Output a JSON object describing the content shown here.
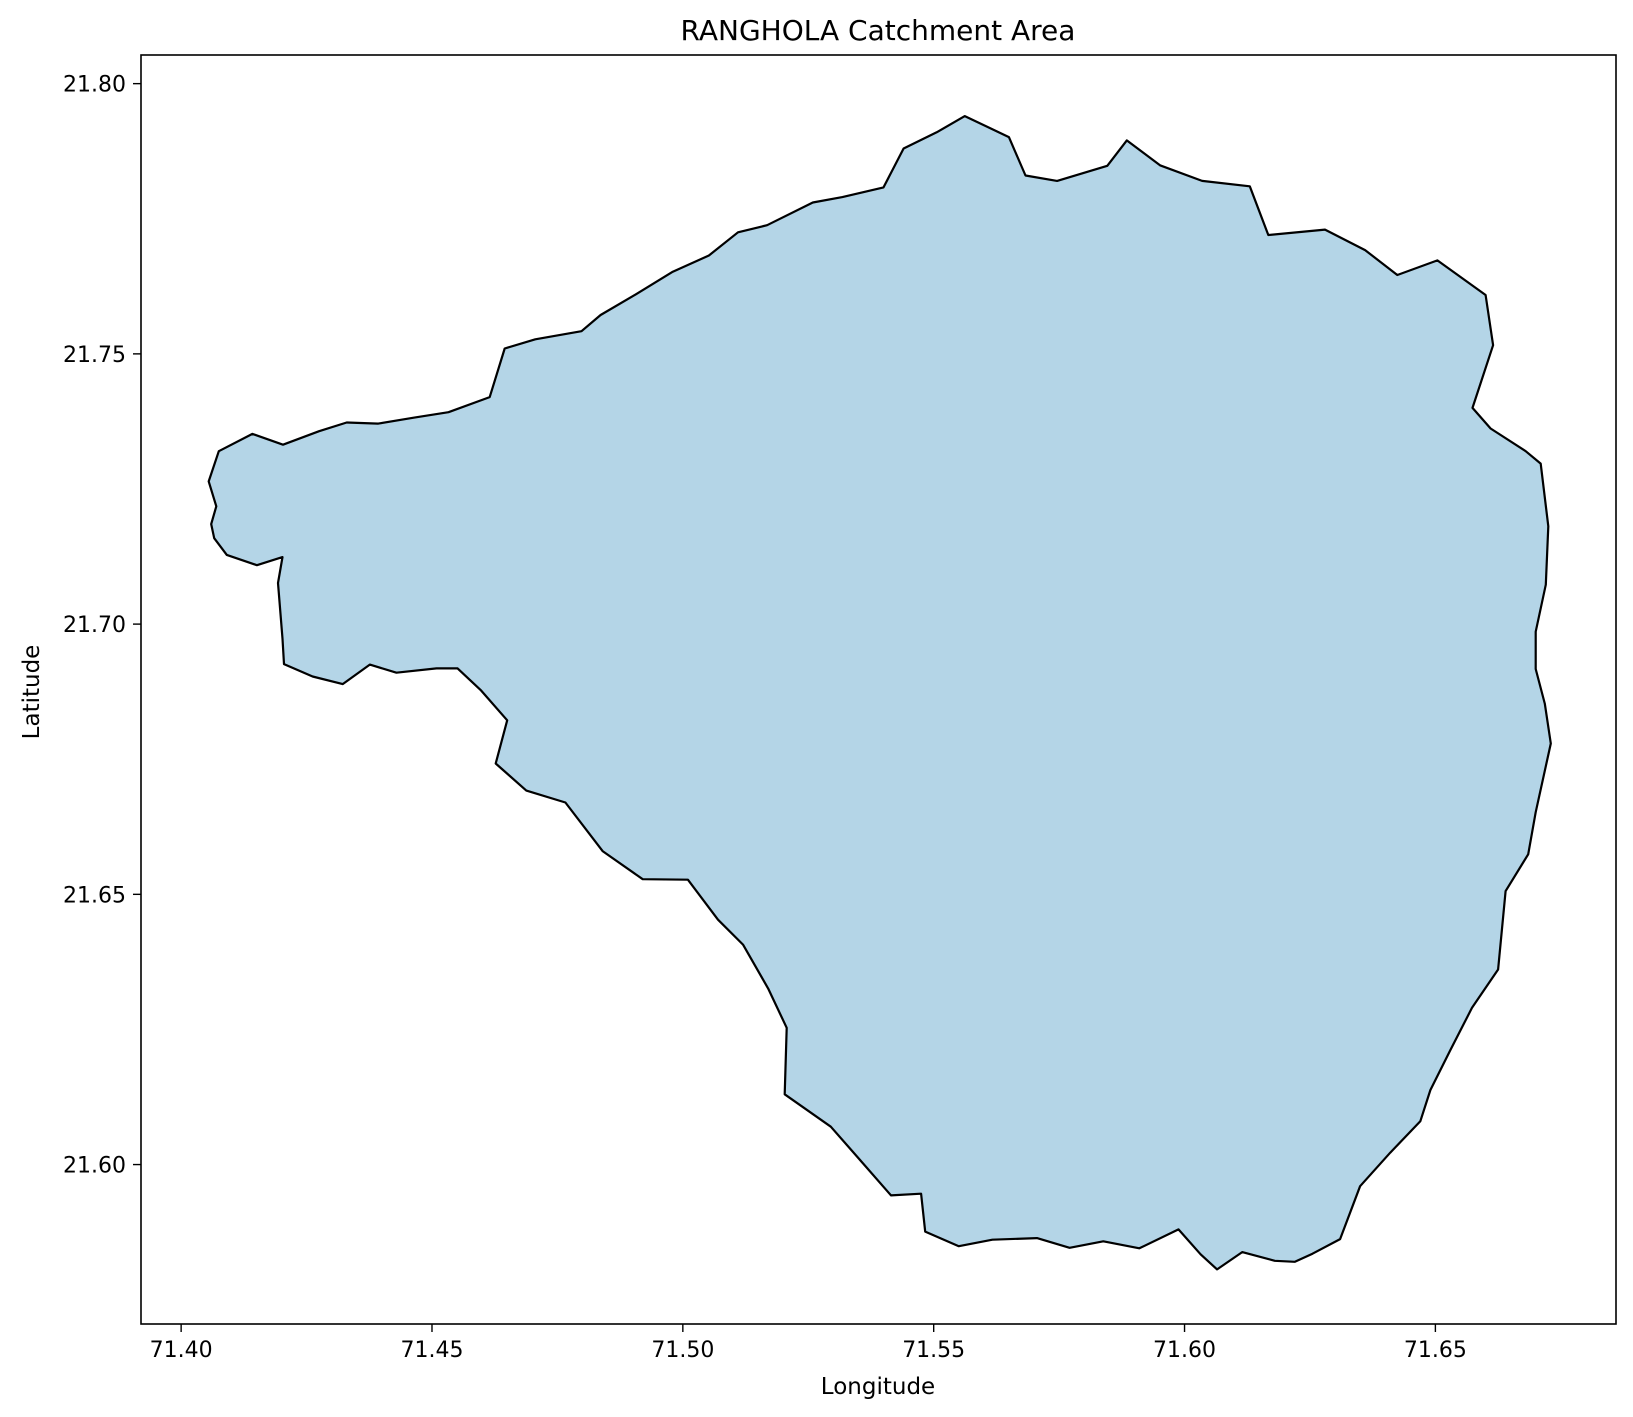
{
  "chart_data": {
    "type": "map",
    "title": "RANGHOLA Catchment Area",
    "xlabel": "Longitude",
    "ylabel": "Latitude",
    "xlim": [
      71.392,
      71.686
    ],
    "ylim": [
      21.5705,
      21.8053
    ],
    "x_ticks": [
      {
        "value": 71.4,
        "label": "71.40"
      },
      {
        "value": 71.45,
        "label": "71.45"
      },
      {
        "value": 71.5,
        "label": "71.50"
      },
      {
        "value": 71.55,
        "label": "71.55"
      },
      {
        "value": 71.6,
        "label": "71.60"
      },
      {
        "value": 71.65,
        "label": "71.65"
      }
    ],
    "y_ticks": [
      {
        "value": 21.6,
        "label": "21.60"
      },
      {
        "value": 21.65,
        "label": "21.65"
      },
      {
        "value": 21.7,
        "label": "21.70"
      },
      {
        "value": 21.75,
        "label": "21.75"
      },
      {
        "value": 21.8,
        "label": "21.80"
      }
    ],
    "fill_color": "#b4d5e7",
    "edge_color": "#000000",
    "catchment_boundary": [
      [
        71.4066,
        21.7159
      ],
      [
        71.4091,
        21.7128
      ],
      [
        71.4151,
        21.7109
      ],
      [
        71.4202,
        21.7124
      ],
      [
        71.4193,
        21.7076
      ],
      [
        71.4202,
        21.6973
      ],
      [
        71.4205,
        21.6926
      ],
      [
        71.4262,
        21.6903
      ],
      [
        71.4322,
        21.6889
      ],
      [
        71.4376,
        21.6925
      ],
      [
        71.4429,
        21.691
      ],
      [
        71.4509,
        21.6918
      ],
      [
        71.4551,
        21.6918
      ],
      [
        71.4598,
        21.6877
      ],
      [
        71.465,
        21.6822
      ],
      [
        71.4627,
        21.6742
      ],
      [
        71.4688,
        21.6692
      ],
      [
        71.4766,
        21.667
      ],
      [
        71.484,
        21.658
      ],
      [
        71.492,
        21.6528
      ],
      [
        71.501,
        21.6527
      ],
      [
        71.507,
        21.6453
      ],
      [
        71.512,
        21.6407
      ],
      [
        71.517,
        21.6326
      ],
      [
        71.5207,
        21.6253
      ],
      [
        71.5203,
        21.613
      ],
      [
        71.5295,
        21.607
      ],
      [
        71.535,
        21.6012
      ],
      [
        71.5415,
        21.5943
      ],
      [
        71.5475,
        21.5946
      ],
      [
        71.5483,
        21.5876
      ],
      [
        71.555,
        21.5849
      ],
      [
        71.5617,
        21.5861
      ],
      [
        71.5706,
        21.5864
      ],
      [
        71.5771,
        21.5846
      ],
      [
        71.5838,
        21.5858
      ],
      [
        71.591,
        21.5845
      ],
      [
        71.5988,
        21.588
      ],
      [
        71.6032,
        21.5834
      ],
      [
        71.6065,
        21.5806
      ],
      [
        71.6115,
        21.5838
      ],
      [
        71.618,
        21.5822
      ],
      [
        71.622,
        21.582
      ],
      [
        71.6255,
        21.5835
      ],
      [
        71.631,
        21.5862
      ],
      [
        71.635,
        21.596
      ],
      [
        71.641,
        21.6022
      ],
      [
        71.647,
        21.608
      ],
      [
        71.649,
        21.6138
      ],
      [
        71.653,
        21.6212
      ],
      [
        71.6573,
        21.629
      ],
      [
        71.6625,
        21.6361
      ],
      [
        71.664,
        21.6506
      ],
      [
        71.6685,
        21.6574
      ],
      [
        71.67,
        21.6652
      ],
      [
        71.673,
        21.6779
      ],
      [
        71.6718,
        21.6853
      ],
      [
        71.67,
        21.6917
      ],
      [
        71.67,
        21.6986
      ],
      [
        71.672,
        21.7073
      ],
      [
        71.6725,
        21.7181
      ],
      [
        71.671,
        21.7297
      ],
      [
        71.668,
        21.732
      ],
      [
        71.661,
        21.7362
      ],
      [
        71.6574,
        21.74
      ],
      [
        71.6615,
        21.7516
      ],
      [
        71.66,
        21.7609
      ],
      [
        71.6504,
        21.7673
      ],
      [
        71.6424,
        21.7646
      ],
      [
        71.636,
        21.7692
      ],
      [
        71.628,
        21.773
      ],
      [
        71.6167,
        21.772
      ],
      [
        71.613,
        21.781
      ],
      [
        71.6035,
        21.782
      ],
      [
        71.5951,
        21.7849
      ],
      [
        71.5885,
        21.7895
      ],
      [
        71.5846,
        21.7848
      ],
      [
        71.5746,
        21.782
      ],
      [
        71.5683,
        21.783
      ],
      [
        71.565,
        21.7901
      ],
      [
        71.5562,
        21.794
      ],
      [
        71.5506,
        21.791
      ],
      [
        71.544,
        21.788
      ],
      [
        71.54,
        21.7808
      ],
      [
        71.5318,
        21.779
      ],
      [
        71.5259,
        21.778
      ],
      [
        71.5168,
        21.7738
      ],
      [
        71.511,
        21.7725
      ],
      [
        71.5052,
        21.7682
      ],
      [
        71.498,
        21.7652
      ],
      [
        71.4906,
        21.761
      ],
      [
        71.4836,
        21.7572
      ],
      [
        71.4798,
        21.7542
      ],
      [
        71.4706,
        21.7527
      ],
      [
        71.4645,
        21.751
      ],
      [
        71.4615,
        21.742
      ],
      [
        71.4533,
        21.7392
      ],
      [
        71.4465,
        21.7382
      ],
      [
        71.4393,
        21.7371
      ],
      [
        71.433,
        21.7373
      ],
      [
        71.4275,
        21.7357
      ],
      [
        71.4203,
        21.7332
      ],
      [
        71.4142,
        21.7352
      ],
      [
        71.4075,
        21.732
      ],
      [
        71.4055,
        21.7264
      ],
      [
        71.407,
        21.7218
      ],
      [
        71.406,
        21.7185
      ]
    ]
  }
}
